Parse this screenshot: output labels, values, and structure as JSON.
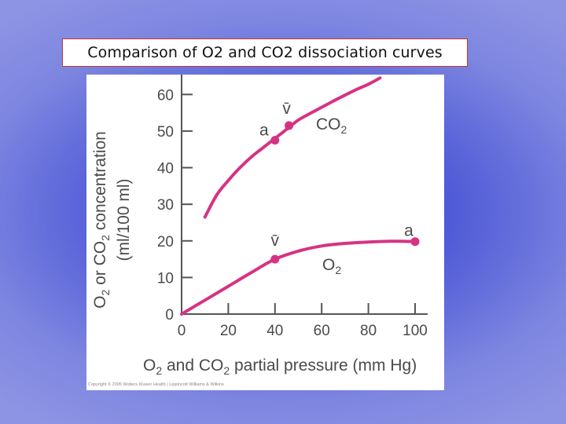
{
  "slide": {
    "title": "Comparison of O2 and CO2 dissociation curves"
  },
  "chart_data": {
    "type": "line",
    "title": "",
    "xlabel": "O2 and CO2 partial pressure (mm Hg)",
    "ylabel_line1": "O2 or CO2 concentration",
    "ylabel_line2": "(ml/100 ml)",
    "xlim": [
      0,
      100
    ],
    "ylim": [
      0,
      65
    ],
    "x_ticks": [
      0,
      20,
      40,
      60,
      80,
      100
    ],
    "y_ticks": [
      0,
      10,
      20,
      30,
      40,
      50,
      60
    ],
    "grid": false,
    "color": "#d63384",
    "series": [
      {
        "name": "CO2",
        "x": [
          10,
          15,
          20,
          25,
          30,
          35,
          40,
          45,
          50,
          55,
          60,
          65,
          70,
          75,
          80,
          85
        ],
        "y": [
          26.5,
          32.5,
          36.5,
          40,
          43,
          45.5,
          48,
          50.5,
          53,
          54.8,
          56.5,
          58.2,
          59.8,
          61.4,
          62.8,
          64.5
        ]
      },
      {
        "name": "O2",
        "x": [
          0,
          10,
          20,
          30,
          40,
          50,
          60,
          70,
          80,
          90,
          100
        ],
        "y": [
          0,
          3.8,
          7.6,
          11.4,
          15,
          17.2,
          18.6,
          19.3,
          19.7,
          19.9,
          19.8
        ]
      }
    ],
    "points": [
      {
        "label": "a",
        "x": 40,
        "y": 47.5
      },
      {
        "label": "v̄",
        "x": 46,
        "y": 51.5
      },
      {
        "label": "v̄",
        "x": 40,
        "y": 15
      },
      {
        "label": "a",
        "x": 100,
        "y": 19.8
      }
    ],
    "curve_labels": {
      "co2": "CO2",
      "o2": "O2"
    }
  },
  "figure": {
    "copyright": "Copyright © 2005 Wolters Kluwer Health | Lippincott Williams & Wilkins"
  }
}
